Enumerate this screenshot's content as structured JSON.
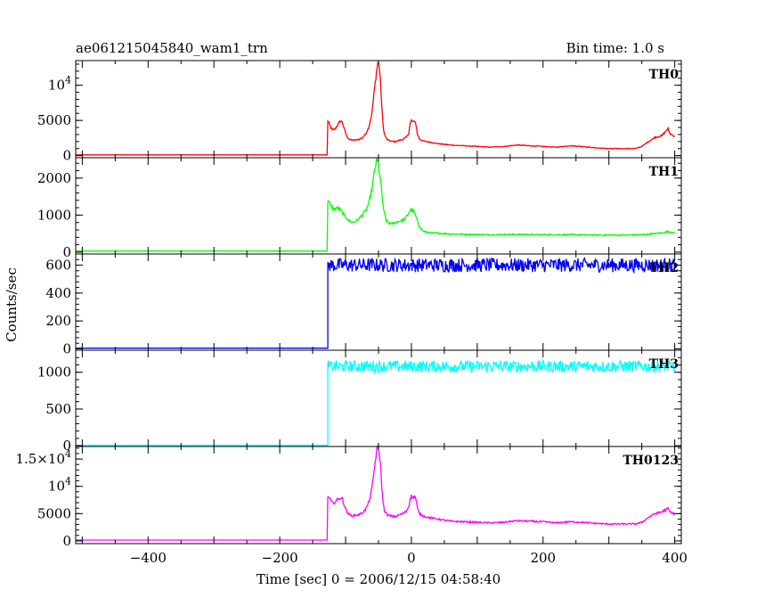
{
  "header": {
    "title": "ae061215045840_wam1_trn",
    "bin_time": "Bin time: 1.0 s"
  },
  "chart_data": {
    "type": "line",
    "title": "ae061215045840_wam1_trn",
    "subtitle": "Bin time: 1.0 s",
    "xlabel": "Time [sec] 0 = 2006/12/15 04:58:40",
    "ylabel": "Counts/sec",
    "xlim": [
      -510,
      410
    ],
    "x_ticks": [
      -400,
      -200,
      0,
      200,
      400
    ],
    "x_tick_labels": [
      "−400",
      "−200",
      "0",
      "200",
      "400"
    ],
    "grid": false,
    "panels": [
      {
        "name": "TH0",
        "color": "#ff0000",
        "ylim": [
          -300,
          13500
        ],
        "y_ticks": [
          {
            "value": 0,
            "label": "0"
          },
          {
            "value": 5000,
            "label": "5000"
          },
          {
            "value": 10000,
            "base": "10",
            "exp": "4"
          }
        ],
        "baseline": 100,
        "points": [
          [
            -510,
            100
          ],
          [
            -128,
            100
          ],
          [
            -128,
            5200
          ],
          [
            -124,
            4300
          ],
          [
            -120,
            3600
          ],
          [
            -116,
            3800
          ],
          [
            -112,
            4400
          ],
          [
            -108,
            4900
          ],
          [
            -105,
            4800
          ],
          [
            -102,
            3800
          ],
          [
            -98,
            2700
          ],
          [
            -94,
            2300
          ],
          [
            -90,
            2200
          ],
          [
            -85,
            2200
          ],
          [
            -80,
            2300
          ],
          [
            -75,
            2500
          ],
          [
            -70,
            3000
          ],
          [
            -65,
            4000
          ],
          [
            -60,
            6000
          ],
          [
            -56,
            9500
          ],
          [
            -53,
            12000
          ],
          [
            -51,
            13200
          ],
          [
            -49,
            12800
          ],
          [
            -47,
            10500
          ],
          [
            -45,
            7000
          ],
          [
            -43,
            4300
          ],
          [
            -41,
            3000
          ],
          [
            -37,
            2300
          ],
          [
            -33,
            2100
          ],
          [
            -28,
            2000
          ],
          [
            -23,
            2000
          ],
          [
            -18,
            2200
          ],
          [
            -13,
            2300
          ],
          [
            -8,
            2600
          ],
          [
            -4,
            3200
          ],
          [
            -2,
            4500
          ],
          [
            0,
            5000
          ],
          [
            3,
            4700
          ],
          [
            5,
            5000
          ],
          [
            7,
            4400
          ],
          [
            9,
            3100
          ],
          [
            12,
            2400
          ],
          [
            17,
            2100
          ],
          [
            22,
            2000
          ],
          [
            30,
            1900
          ],
          [
            40,
            1700
          ],
          [
            50,
            1600
          ],
          [
            60,
            1500
          ],
          [
            80,
            1400
          ],
          [
            100,
            1300
          ],
          [
            120,
            1200
          ],
          [
            140,
            1300
          ],
          [
            160,
            1500
          ],
          [
            180,
            1400
          ],
          [
            200,
            1300
          ],
          [
            220,
            1200
          ],
          [
            240,
            1400
          ],
          [
            260,
            1300
          ],
          [
            280,
            1100
          ],
          [
            300,
            1000
          ],
          [
            320,
            1000
          ],
          [
            340,
            1000
          ],
          [
            350,
            1300
          ],
          [
            360,
            2000
          ],
          [
            370,
            2600
          ],
          [
            380,
            2800
          ],
          [
            385,
            3300
          ],
          [
            390,
            3800
          ],
          [
            393,
            3100
          ],
          [
            397,
            2900
          ],
          [
            400,
            2700
          ]
        ]
      },
      {
        "name": "TH1",
        "color": "#00ff00",
        "ylim": [
          -50,
          2550
        ],
        "y_ticks": [
          {
            "value": 0,
            "label": "0"
          },
          {
            "value": 1000,
            "label": "1000"
          },
          {
            "value": 2000,
            "label": "2000"
          }
        ],
        "baseline": 30,
        "points": [
          [
            -510,
            30
          ],
          [
            -128,
            30
          ],
          [
            -128,
            1450
          ],
          [
            -124,
            1300
          ],
          [
            -118,
            1150
          ],
          [
            -112,
            1200
          ],
          [
            -106,
            1100
          ],
          [
            -100,
            950
          ],
          [
            -95,
            850
          ],
          [
            -90,
            800
          ],
          [
            -85,
            830
          ],
          [
            -80,
            900
          ],
          [
            -75,
            1000
          ],
          [
            -70,
            1100
          ],
          [
            -65,
            1300
          ],
          [
            -60,
            1700
          ],
          [
            -56,
            2200
          ],
          [
            -53,
            2450
          ],
          [
            -51,
            2420
          ],
          [
            -48,
            2100
          ],
          [
            -45,
            1600
          ],
          [
            -42,
            1100
          ],
          [
            -38,
            850
          ],
          [
            -34,
            780
          ],
          [
            -30,
            770
          ],
          [
            -25,
            800
          ],
          [
            -20,
            830
          ],
          [
            -15,
            850
          ],
          [
            -10,
            900
          ],
          [
            -6,
            1000
          ],
          [
            -3,
            1100
          ],
          [
            0,
            1150
          ],
          [
            4,
            1100
          ],
          [
            8,
            900
          ],
          [
            12,
            700
          ],
          [
            17,
            580
          ],
          [
            22,
            540
          ],
          [
            30,
            520
          ],
          [
            50,
            500
          ],
          [
            80,
            480
          ],
          [
            120,
            470
          ],
          [
            160,
            480
          ],
          [
            200,
            470
          ],
          [
            240,
            470
          ],
          [
            280,
            460
          ],
          [
            320,
            460
          ],
          [
            350,
            470
          ],
          [
            370,
            500
          ],
          [
            380,
            520
          ],
          [
            390,
            550
          ],
          [
            395,
            540
          ],
          [
            400,
            530
          ]
        ]
      },
      {
        "name": "TH2",
        "color": "#0000ff",
        "ylim": [
          -10,
          680
        ],
        "y_ticks": [
          {
            "value": 0,
            "label": "0"
          },
          {
            "value": 200,
            "label": "200"
          },
          {
            "value": 400,
            "label": "400"
          },
          {
            "value": 600,
            "label": "600"
          }
        ],
        "baseline": 5,
        "level": 600,
        "noise": 50,
        "points": [
          [
            -510,
            5
          ],
          [
            -128,
            5
          ],
          [
            -127,
            600
          ],
          [
            400,
            600
          ]
        ]
      },
      {
        "name": "TH3",
        "color": "#00ffff",
        "ylim": [
          -10,
          1300
        ],
        "y_ticks": [
          {
            "value": 0,
            "label": "0"
          },
          {
            "value": 500,
            "label": "500"
          },
          {
            "value": 1000,
            "label": "1000"
          }
        ],
        "baseline": 5,
        "level": 1080,
        "noise": 80,
        "points": [
          [
            -510,
            5
          ],
          [
            -128,
            5
          ],
          [
            -127,
            1080
          ],
          [
            400,
            1080
          ]
        ]
      },
      {
        "name": "TH0123",
        "color": "#ff00ff",
        "ylim": [
          -500,
          17300
        ],
        "y_ticks": [
          {
            "value": 0,
            "label": "0"
          },
          {
            "value": 5000,
            "label": "5000"
          },
          {
            "value": 10000,
            "base": "10",
            "exp": "4"
          },
          {
            "value": 15000,
            "base": "1.5×10",
            "exp": "4"
          }
        ],
        "baseline": 150,
        "points": [
          [
            -510,
            150
          ],
          [
            -128,
            150
          ],
          [
            -128,
            8400
          ],
          [
            -124,
            7700
          ],
          [
            -120,
            6900
          ],
          [
            -116,
            7100
          ],
          [
            -112,
            7600
          ],
          [
            -108,
            7900
          ],
          [
            -105,
            7700
          ],
          [
            -102,
            6600
          ],
          [
            -98,
            5300
          ],
          [
            -94,
            4800
          ],
          [
            -90,
            4600
          ],
          [
            -85,
            4700
          ],
          [
            -80,
            4800
          ],
          [
            -75,
            5100
          ],
          [
            -70,
            5700
          ],
          [
            -65,
            7000
          ],
          [
            -60,
            9500
          ],
          [
            -56,
            13500
          ],
          [
            -53,
            16300
          ],
          [
            -51,
            17000
          ],
          [
            -49,
            16500
          ],
          [
            -47,
            14000
          ],
          [
            -45,
            10000
          ],
          [
            -43,
            7000
          ],
          [
            -41,
            5600
          ],
          [
            -37,
            4800
          ],
          [
            -33,
            4600
          ],
          [
            -28,
            4500
          ],
          [
            -23,
            4500
          ],
          [
            -18,
            4800
          ],
          [
            -13,
            5000
          ],
          [
            -8,
            5400
          ],
          [
            -4,
            6300
          ],
          [
            -2,
            7800
          ],
          [
            0,
            8200
          ],
          [
            3,
            7900
          ],
          [
            5,
            8200
          ],
          [
            7,
            7600
          ],
          [
            9,
            6000
          ],
          [
            12,
            5000
          ],
          [
            17,
            4600
          ],
          [
            22,
            4400
          ],
          [
            30,
            4200
          ],
          [
            40,
            4000
          ],
          [
            50,
            3800
          ],
          [
            60,
            3600
          ],
          [
            80,
            3500
          ],
          [
            100,
            3400
          ],
          [
            120,
            3300
          ],
          [
            140,
            3400
          ],
          [
            160,
            3700
          ],
          [
            180,
            3600
          ],
          [
            200,
            3500
          ],
          [
            220,
            3300
          ],
          [
            240,
            3500
          ],
          [
            260,
            3400
          ],
          [
            280,
            3200
          ],
          [
            300,
            3100
          ],
          [
            320,
            3100
          ],
          [
            340,
            3100
          ],
          [
            350,
            3400
          ],
          [
            360,
            4300
          ],
          [
            370,
            5000
          ],
          [
            380,
            5300
          ],
          [
            385,
            5600
          ],
          [
            390,
            5900
          ],
          [
            393,
            5300
          ],
          [
            397,
            5100
          ],
          [
            400,
            4900
          ]
        ]
      }
    ]
  }
}
